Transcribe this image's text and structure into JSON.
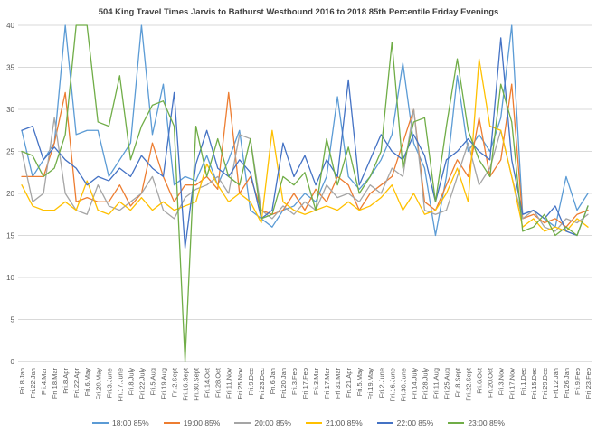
{
  "chart_data": {
    "type": "line",
    "title": "504 King Travel Times Jarvis to Bathurst Westbound 2016 to 2018 85th Percentile Friday Evenings",
    "xlabel": "",
    "ylabel": "",
    "ylim": [
      0,
      40
    ],
    "yticks": [
      0,
      5,
      10,
      15,
      20,
      25,
      30,
      35,
      40
    ],
    "grid": true,
    "legend_position": "bottom",
    "axis_text_color": "#595959",
    "gridline_color": "#D9D9D9",
    "axis_line_color": "#BFBFBF",
    "x_labels": [
      "Fri.8.Jan",
      "Fri.22.Jan",
      "Fri.4.Mar",
      "Fri.18.Mar",
      "Fri.8.Apr",
      "Fri.22.Apr",
      "Fri.6.May",
      "Fri.20.May",
      "Fri.3.June",
      "Fri.17.June",
      "Fri.8.July",
      "Fri.22.July",
      "Fri.5.Aug",
      "Fri.19.Aug",
      "Fri.2.Sept",
      "Fri.16.Sept",
      "Fri.30.Sept",
      "Fri.14.Oct",
      "Fri.28.Oct",
      "Fri.11.Nov",
      "Fri.25.Nov",
      "Fri.9.Dec",
      "Fri.23.Dec",
      "Fri.6.Jan",
      "Fri.20.Jan",
      "Fri.3.Feb",
      "Fri.17.Feb",
      "Fri.3.Mar",
      "Fri.17.Mar",
      "Fri.31.Mar",
      "Fri.21.Apr",
      "Fri.5.May",
      "Fri.19.May",
      "Fri.2.June",
      "Fri.16.June",
      "Fri.30.June",
      "Fri.14.July",
      "Fri.28.July",
      "Fri.11.Aug",
      "Fri.25.Aug",
      "Fri.8.Sept",
      "Fri.22.Sept",
      "Fri.6.Oct",
      "Fri.20.Oct",
      "Fri.3.Nov",
      "Fri.17.Nov",
      "Fri.1.Dec",
      "Fri.15.Dec",
      "Fri.29.Dec",
      "Fri.12.Jan",
      "Fri.26.Jan",
      "Fri.9.Feb",
      "Fri.23.Feb"
    ],
    "series": [
      {
        "name": "18:00 85%",
        "color": "#5B9BD5",
        "values": [
          27.5,
          22,
          24,
          26,
          40,
          27,
          27.5,
          27.5,
          22,
          24,
          26,
          40,
          27,
          33,
          21,
          22,
          21.5,
          24.5,
          21,
          24,
          27.5,
          18,
          17,
          16,
          18,
          18.5,
          20,
          19,
          22,
          31.5,
          22,
          20.5,
          22,
          24,
          27,
          35.5,
          26,
          23,
          15,
          22,
          34,
          25,
          27,
          25,
          29,
          40,
          17.5,
          18,
          17,
          16,
          22,
          18,
          20
        ]
      },
      {
        "name": "19:00 85%",
        "color": "#ED7D31",
        "values": [
          22,
          22,
          22,
          26,
          32,
          19,
          19.5,
          19,
          19,
          21,
          18.5,
          20,
          26,
          22,
          19,
          21,
          21,
          22,
          20.5,
          32,
          20,
          22,
          18,
          17.5,
          18,
          20,
          18,
          20.5,
          19,
          22,
          21,
          18,
          20,
          21,
          22,
          26,
          30,
          19,
          18,
          21,
          24,
          22,
          29,
          22,
          24,
          33,
          17,
          17.5,
          16.5,
          17,
          16,
          17.5,
          18
        ]
      },
      {
        "name": "20:00 85%",
        "color": "#A5A5A5",
        "values": [
          25,
          19,
          20,
          29,
          20,
          18,
          17.5,
          21,
          18.5,
          18,
          19,
          20,
          22,
          18,
          17,
          19.5,
          20.5,
          21,
          22,
          20,
          27,
          26.5,
          18,
          17,
          18.5,
          17.5,
          19,
          18,
          21,
          19.5,
          20,
          19,
          21,
          20,
          23,
          22,
          30,
          18,
          17.5,
          18,
          22,
          26,
          21,
          23,
          27.5,
          22,
          17,
          18,
          16,
          15.5,
          17,
          16.5,
          17.5
        ]
      },
      {
        "name": "21:00 85%",
        "color": "#FFC000",
        "values": [
          21,
          18.5,
          18,
          18,
          19,
          18,
          21.5,
          18,
          17.5,
          19,
          18,
          19.5,
          18,
          19,
          18,
          18.5,
          19,
          23.5,
          21,
          19,
          20,
          19,
          16.5,
          27.5,
          19,
          18,
          17.5,
          18,
          18.5,
          18,
          19,
          18,
          18.5,
          19.5,
          21,
          18,
          20,
          17.5,
          18,
          20,
          23,
          19,
          36,
          28,
          27.5,
          22,
          16,
          17,
          15.5,
          16,
          15.5,
          17,
          16
        ]
      },
      {
        "name": "22:00 85%",
        "color": "#4472C4",
        "values": [
          27.5,
          28,
          24,
          25.5,
          24,
          23,
          21,
          22,
          21.5,
          23,
          22,
          24.5,
          23,
          22,
          32,
          13.5,
          23.5,
          27.5,
          23,
          22,
          24,
          22.5,
          17,
          18,
          26,
          22,
          24.5,
          21,
          24,
          22,
          33.5,
          21,
          24,
          27,
          25,
          24,
          27,
          24.5,
          19,
          24,
          25,
          26.5,
          25,
          24,
          38.5,
          24,
          17.5,
          18,
          17,
          18.5,
          15.5,
          15,
          18.5
        ]
      },
      {
        "name": "23:00 85%",
        "color": "#70AD47",
        "values": [
          25,
          24.5,
          22,
          23,
          27,
          40,
          40,
          28.5,
          28,
          34,
          24,
          28,
          30.5,
          31,
          28,
          0,
          28,
          22,
          26.5,
          22,
          21,
          26.5,
          17,
          17.5,
          22,
          21,
          22.5,
          18,
          26.5,
          21,
          25.5,
          20,
          22,
          25,
          38,
          23,
          28.5,
          29,
          19,
          28,
          36,
          27.5,
          24,
          22,
          33,
          28.5,
          15.5,
          16,
          17.5,
          15,
          16,
          15,
          18.5
        ]
      }
    ]
  }
}
